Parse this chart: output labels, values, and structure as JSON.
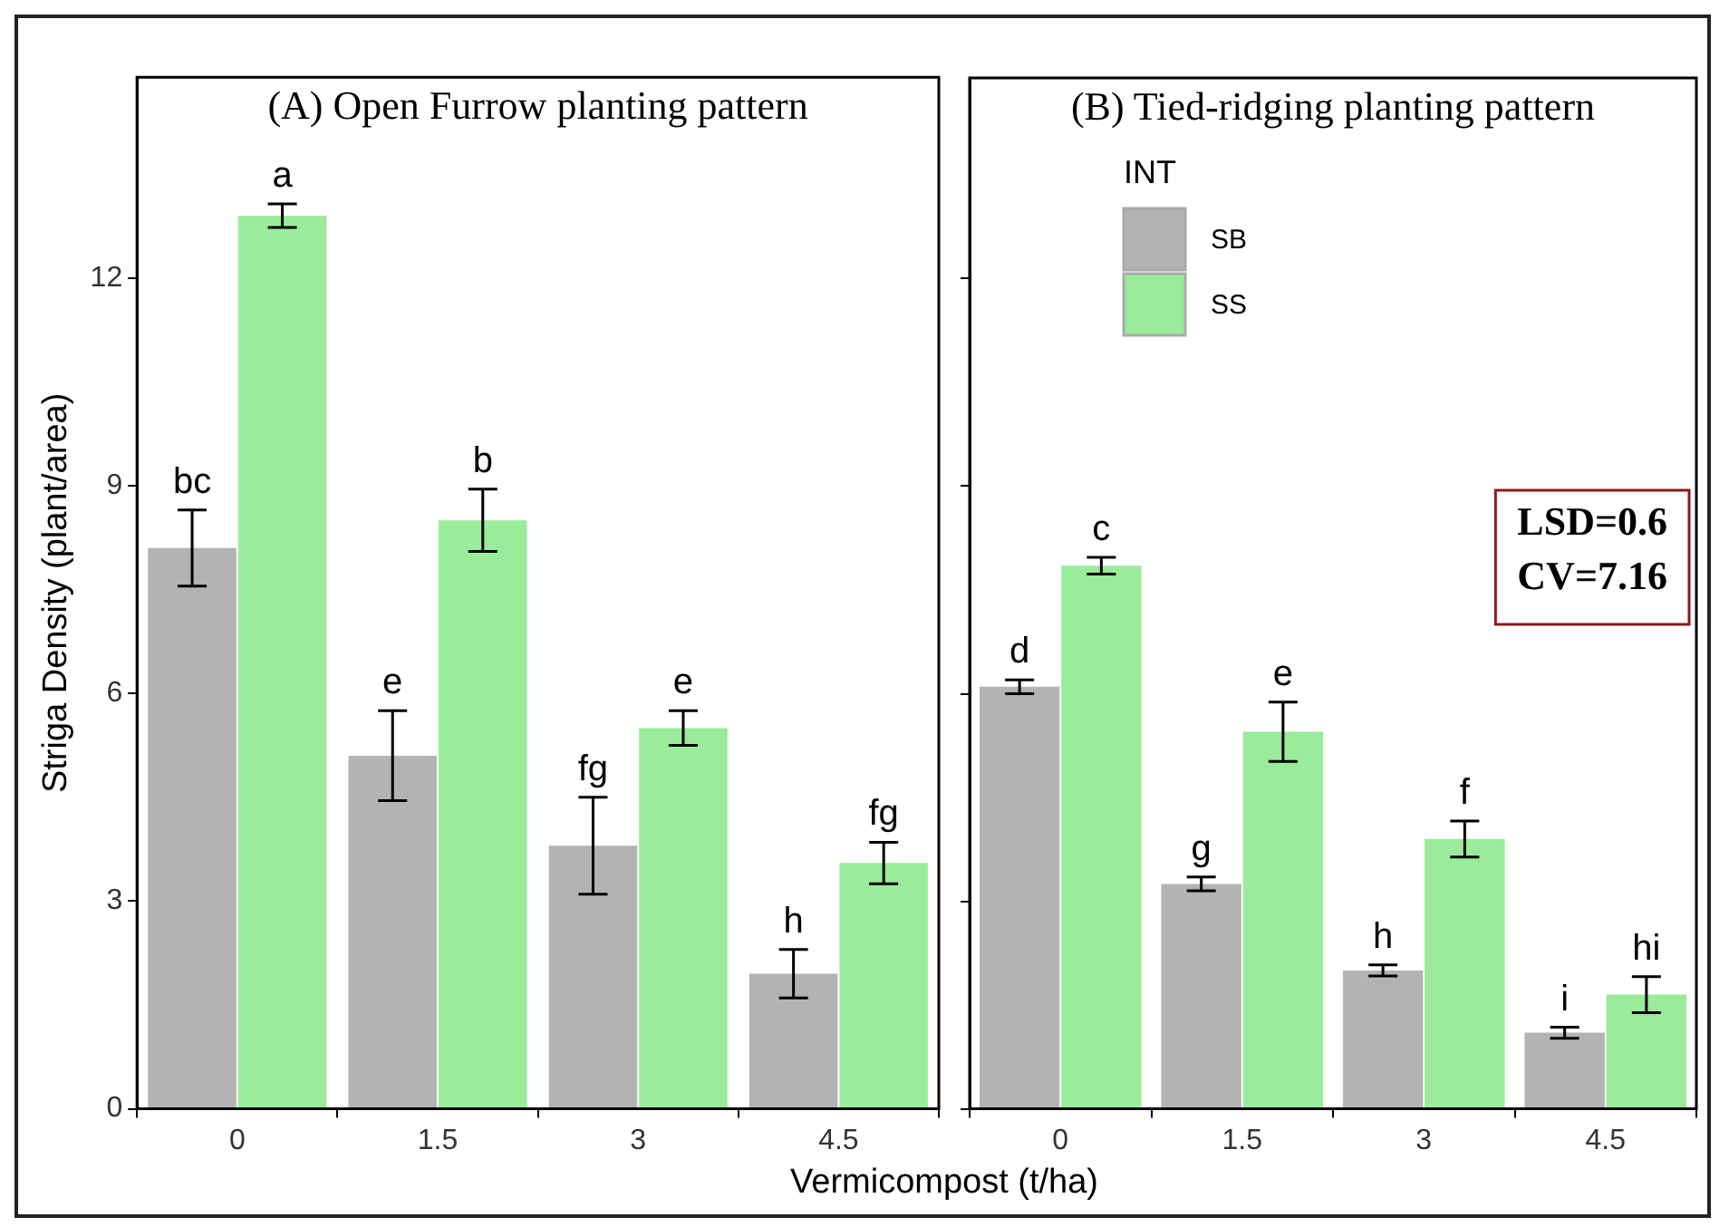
{
  "chart_data": [
    {
      "type": "bar",
      "title": "(A) Open Furrow planting pattern",
      "ylabel": "Striga Density (plant/area)",
      "xlabel": "Vermicompost (t/ha)",
      "categories": [
        "0",
        "1.5",
        "3",
        "4.5"
      ],
      "series": [
        {
          "color": "#b3b3b3",
          "values": [
            8.1,
            5.1,
            3.8,
            1.95
          ],
          "errors": [
            0.55,
            0.65,
            0.7,
            0.35
          ]
        },
        {
          "color": "#9aeb9a",
          "values": [
            12.9,
            8.5,
            5.5,
            3.55
          ],
          "errors": [
            0.17,
            0.45,
            0.25,
            0.3
          ]
        }
      ],
      "ylim": [
        0,
        14.9
      ],
      "yticks": [
        0,
        3,
        6,
        9,
        12
      ],
      "grid": false,
      "legend": false,
      "annotations": [
        "bc",
        "a",
        "e",
        "b",
        "fg",
        "e",
        "h",
        "fg"
      ]
    },
    {
      "type": "bar",
      "title": "(B) Tied-ridging planting pattern",
      "legend_title": "INT",
      "categories": [
        "0",
        "1.5",
        "3",
        "4.5"
      ],
      "series": [
        {
          "name": "SB",
          "color": "#b3b3b3",
          "values": [
            6.1,
            3.25,
            2.0,
            1.1
          ],
          "errors": [
            0.1,
            0.1,
            0.08,
            0.08
          ]
        },
        {
          "name": "SS",
          "color": "#9aeb9a",
          "values": [
            7.85,
            5.45,
            3.9,
            1.65
          ],
          "errors": [
            0.12,
            0.43,
            0.26,
            0.26
          ]
        }
      ],
      "ylim": [
        0,
        14.9
      ],
      "yticks": [
        0,
        3,
        6,
        9,
        12
      ],
      "tick_labels": "x",
      "grid": false,
      "legend": "top left",
      "annotations": [
        "d",
        "c",
        "g",
        "e",
        "h",
        "f",
        "i",
        "hi",
        "LSD=0.6",
        "CV=7.16"
      ]
    }
  ]
}
